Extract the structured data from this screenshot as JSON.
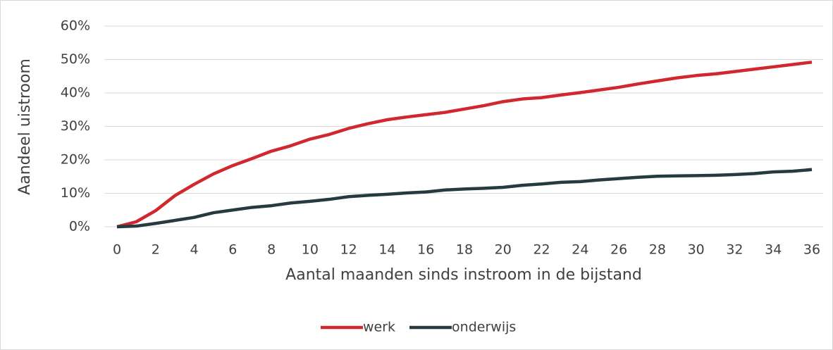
{
  "chart_data": {
    "type": "line",
    "x": [
      0,
      1,
      2,
      3,
      4,
      5,
      6,
      7,
      8,
      9,
      10,
      11,
      12,
      13,
      14,
      15,
      16,
      17,
      18,
      19,
      20,
      21,
      22,
      23,
      24,
      25,
      26,
      27,
      28,
      29,
      30,
      31,
      32,
      33,
      34,
      35,
      36
    ],
    "series": [
      {
        "name": "werk",
        "color": "#d0282e",
        "values": [
          0,
          1.5,
          4.8,
          9.3,
          12.7,
          15.8,
          18.3,
          20.4,
          22.6,
          24.2,
          26.2,
          27.6,
          29.4,
          30.8,
          32.0,
          32.8,
          33.5,
          34.2,
          35.2,
          36.2,
          37.4,
          38.2,
          38.6,
          39.4,
          40.1,
          40.9,
          41.7,
          42.7,
          43.6,
          44.5,
          45.2,
          45.7,
          46.4,
          47.1,
          47.8,
          48.5,
          49.2
        ]
      },
      {
        "name": "onderwijs",
        "color": "#263a40",
        "values": [
          0,
          0.2,
          1.0,
          1.9,
          2.8,
          4.2,
          5.0,
          5.8,
          6.3,
          7.1,
          7.6,
          8.2,
          9.0,
          9.4,
          9.7,
          10.1,
          10.4,
          11.0,
          11.3,
          11.5,
          11.8,
          12.4,
          12.8,
          13.3,
          13.5,
          14.0,
          14.4,
          14.8,
          15.1,
          15.2,
          15.3,
          15.4,
          15.6,
          15.9,
          16.4,
          16.6,
          17.1
        ]
      }
    ],
    "xlim": [
      0,
      36
    ],
    "xticks": [
      0,
      2,
      4,
      6,
      8,
      10,
      12,
      14,
      16,
      18,
      20,
      22,
      24,
      26,
      28,
      30,
      32,
      34,
      36
    ],
    "ylim": [
      0,
      60
    ],
    "yticks": [
      {
        "value": 0,
        "label": "0%"
      },
      {
        "value": 10,
        "label": "10%"
      },
      {
        "value": 20,
        "label": "20%"
      },
      {
        "value": 30,
        "label": "30%"
      },
      {
        "value": 40,
        "label": "40%"
      },
      {
        "value": 50,
        "label": "50%"
      },
      {
        "value": 60,
        "label": "60%"
      }
    ],
    "xlabel": "Aantal maanden sinds instroom in de bijstand",
    "ylabel": "Aandeel uistroom",
    "grid": true,
    "legend": "bottom"
  }
}
